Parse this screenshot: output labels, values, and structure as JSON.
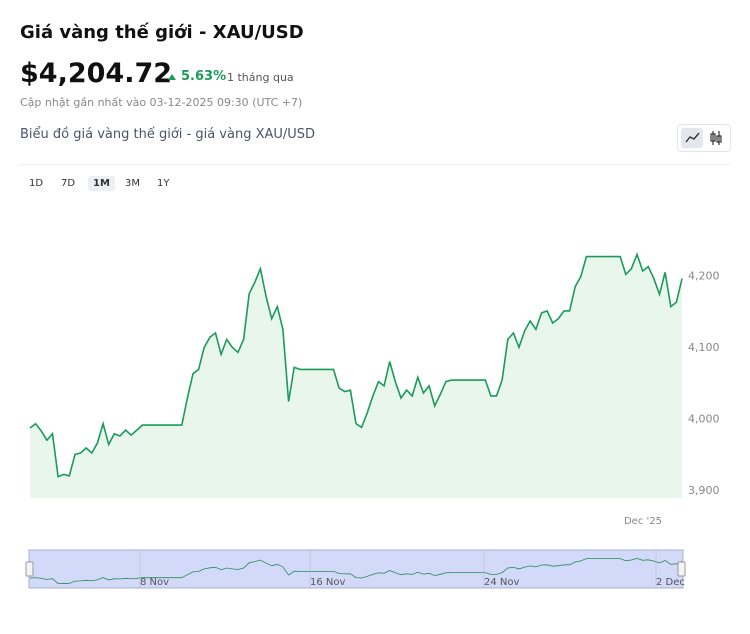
{
  "header": {
    "title": "Giá vàng thế giới - XAU/USD",
    "price": "$4,204.72",
    "change": "5.63%",
    "period": "1 tháng qua",
    "updated": "Cập nhật gần nhất vào 03-12-2025 09:30 (UTC +7)"
  },
  "subtitle": "Biểu đồ giá vàng thế giới - giá vàng XAU/USD",
  "ranges": [
    "1D",
    "7D",
    "1M",
    "3M",
    "1Y"
  ],
  "selected_range": "1M",
  "chart_data": {
    "type": "line",
    "color": "#1a9b5a",
    "fill": "#e8f6ec",
    "values": [
      3988,
      3994,
      3984,
      3971,
      3980,
      3920,
      3923,
      3921,
      3951,
      3953,
      3960,
      3953,
      3967,
      3994,
      3965,
      3980,
      3977,
      3985,
      3978,
      3985,
      3992,
      3992,
      3992,
      3992,
      3992,
      3992,
      3992,
      3992,
      4030,
      4064,
      4070,
      4101,
      4115,
      4121,
      4091,
      4112,
      4101,
      4094,
      4112,
      4176,
      4192,
      4211,
      4172,
      4141,
      4158,
      4126,
      4025,
      4073,
      4070,
      4070,
      4070,
      4070,
      4070,
      4070,
      4070,
      4044,
      4039,
      4041,
      3994,
      3989,
      4009,
      4033,
      4053,
      4047,
      4081,
      4053,
      4030,
      4041,
      4033,
      4059,
      4037,
      4047,
      4019,
      4035,
      4053,
      4055,
      4055,
      4055,
      4055,
      4055,
      4055,
      4055,
      4033,
      4033,
      4055,
      4112,
      4121,
      4101,
      4124,
      4138,
      4126,
      4149,
      4152,
      4135,
      4141,
      4152,
      4152,
      4186,
      4200,
      4228,
      4228,
      4228,
      4228,
      4228,
      4228,
      4228,
      4203,
      4211,
      4231,
      4208,
      4214,
      4197,
      4175,
      4206,
      4158,
      4164,
      4197
    ],
    "ylim": [
      3890,
      4310
    ],
    "yticks": [
      {
        "value": 3900,
        "label": "3,900"
      },
      {
        "value": 4000,
        "label": "4,000"
      },
      {
        "value": 4100,
        "label": "4,100"
      },
      {
        "value": 4200,
        "label": "4,200"
      }
    ],
    "x_tick_labels": [
      "Dec '25"
    ],
    "navigator_labels": [
      "8 Nov",
      "16 Nov",
      "24 Nov",
      "2 Dec"
    ]
  }
}
